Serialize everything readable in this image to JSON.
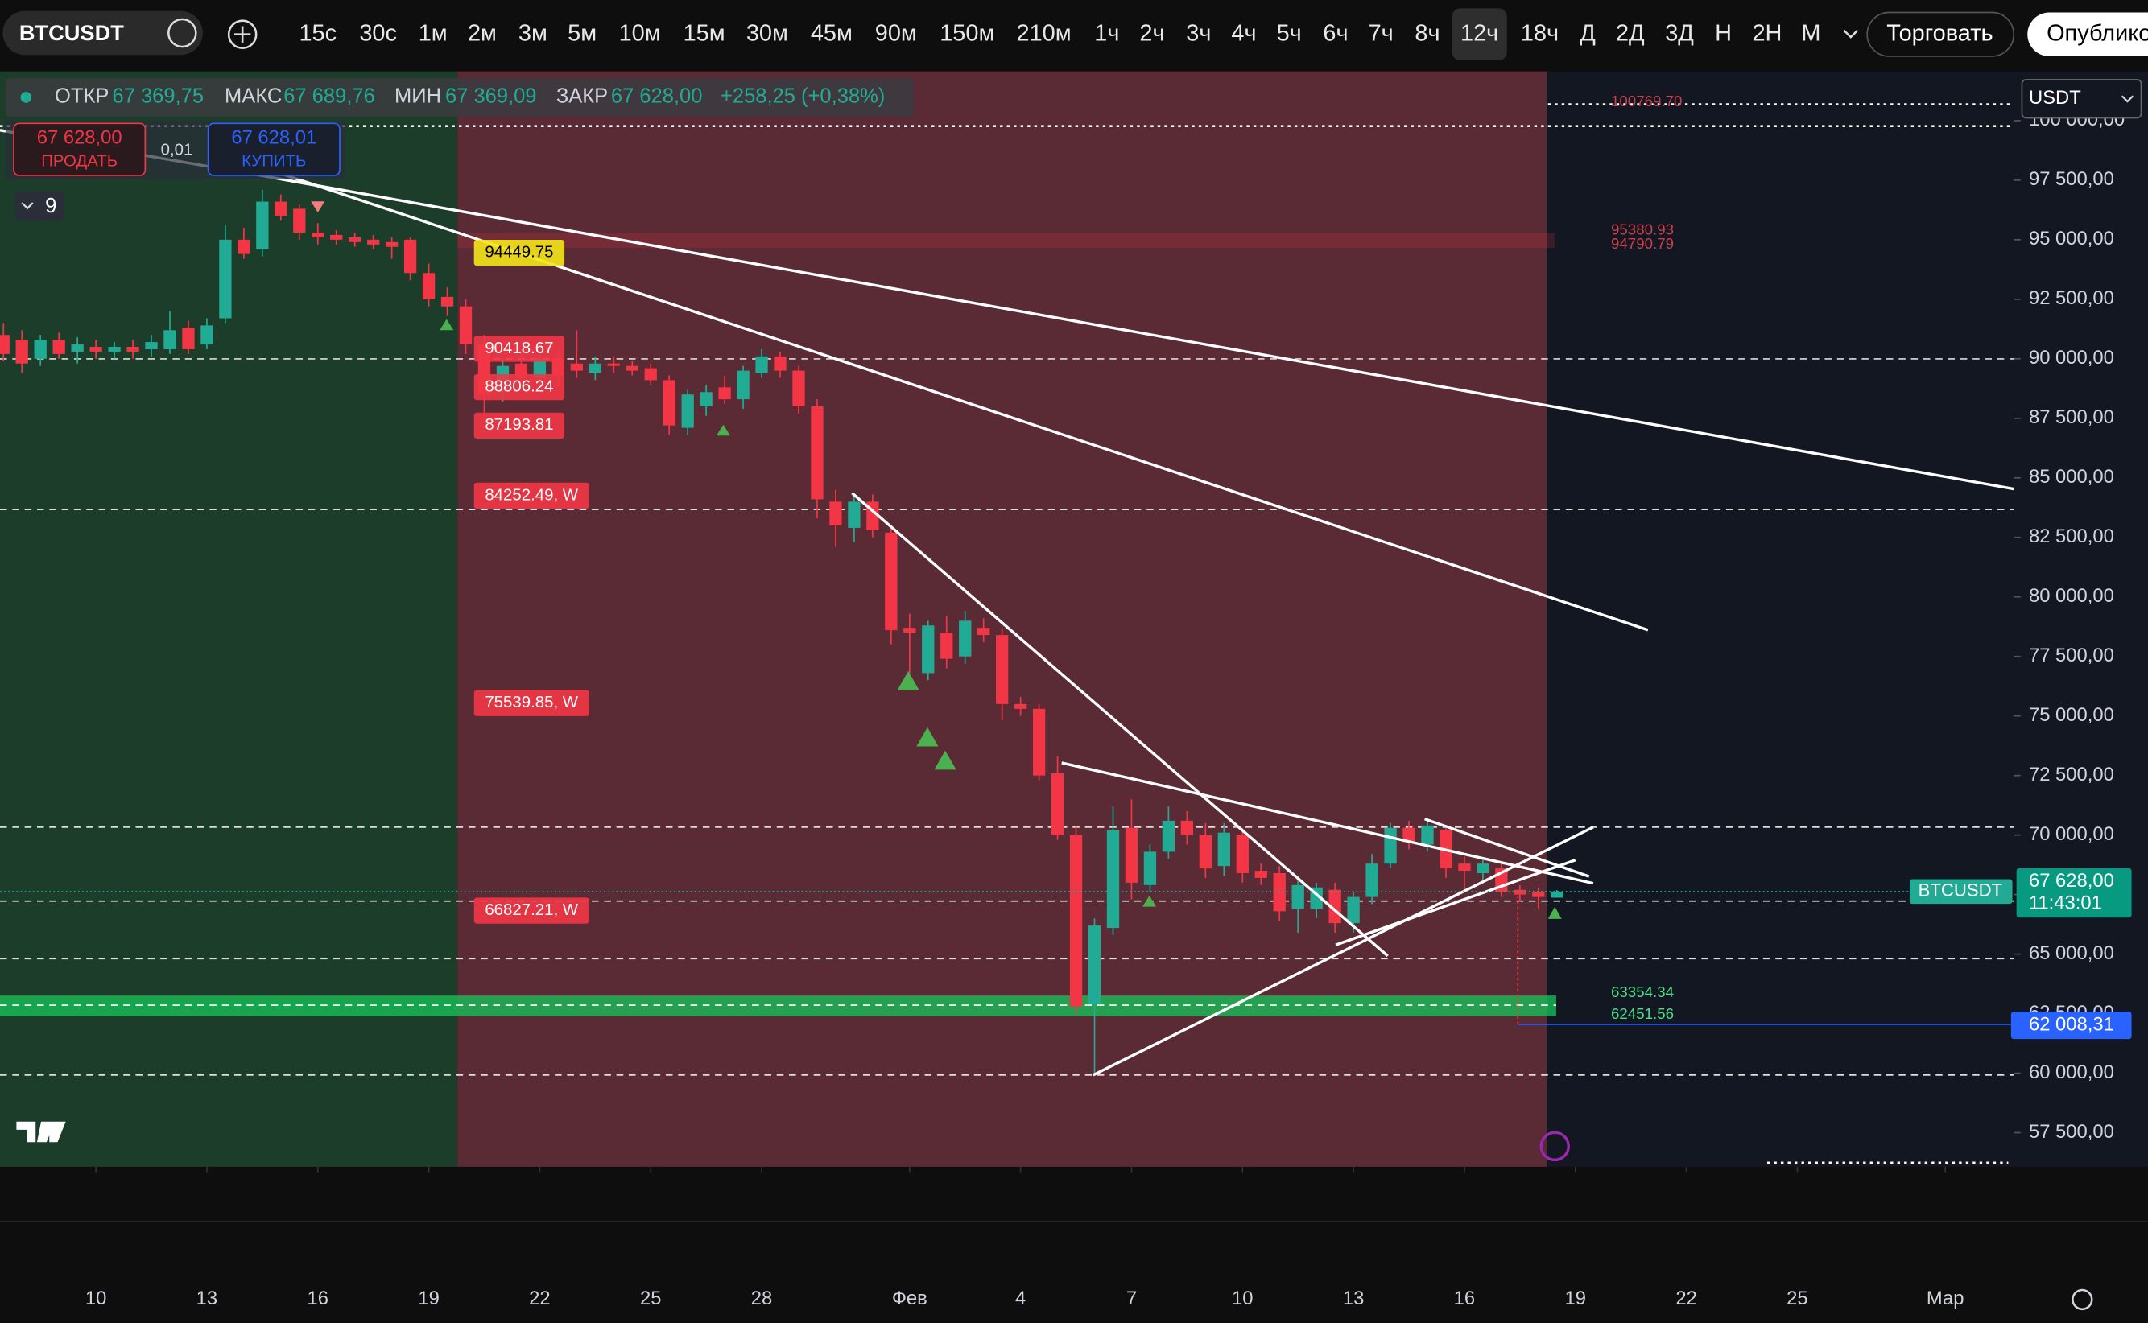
{
  "toolbar": {
    "symbol": "BTCUSDT",
    "timeframes": [
      "15с",
      "30с",
      "1м",
      "2м",
      "3м",
      "5м",
      "10м",
      "15м",
      "30м",
      "45м",
      "90м",
      "150м",
      "210м",
      "1ч",
      "2ч",
      "3ч",
      "4ч",
      "5ч",
      "6ч",
      "7ч",
      "8ч",
      "12ч",
      "18ч",
      "Д",
      "2Д",
      "3Д",
      "Н",
      "2Н",
      "М"
    ],
    "active_index": 21,
    "trade_button": "Торговать",
    "publish_button": "Опубликовать"
  },
  "legend": {
    "open_label": "ОТКР",
    "open": "67 369,75",
    "high_label": "МАКС",
    "high": "67 689,76",
    "low_label": "МИН",
    "low": "67 369,09",
    "close_label": "ЗАКР",
    "close": "67 628,00",
    "change": "+258,25 (+0,38%)"
  },
  "order_panel": {
    "sell_price": "67 628,00",
    "sell_label": "ПРОДАТЬ",
    "spread": "0,01",
    "buy_price": "67 628,01",
    "buy_label": "КУПИТЬ"
  },
  "indicators_count": "9",
  "currency": "USDT",
  "countdown": "11:43:01",
  "chart_data": {
    "type": "candlestick",
    "up_color": "#22ab94",
    "down_color": "#f23645",
    "categories": [
      null,
      null,
      null,
      null,
      null,
      null,
      null,
      null,
      null,
      null,
      null,
      null,
      null,
      null,
      null,
      null,
      null,
      null,
      null,
      null,
      null,
      null,
      null,
      null,
      null,
      null,
      null,
      null,
      null,
      null,
      null,
      null,
      null,
      null,
      null,
      null,
      null,
      null,
      null,
      null,
      null,
      null,
      null,
      null,
      null,
      null,
      null,
      null,
      null,
      null,
      null,
      null,
      null,
      null,
      null,
      null,
      null,
      null,
      null,
      null,
      null,
      null,
      null,
      null,
      null,
      null,
      null,
      null,
      null,
      null,
      null,
      null,
      null,
      null,
      null,
      null,
      null,
      null,
      null,
      null,
      null,
      null,
      null,
      null,
      null
    ],
    "candles": [
      [
        91000,
        91500,
        89900,
        90200
      ],
      [
        90800,
        91200,
        89400,
        89800
      ],
      [
        90000,
        91000,
        89700,
        90800
      ],
      [
        90800,
        91100,
        90000,
        90200
      ],
      [
        90300,
        90900,
        89800,
        90600
      ],
      [
        90500,
        90800,
        90000,
        90300
      ],
      [
        90300,
        90700,
        90000,
        90500
      ],
      [
        90500,
        90800,
        90000,
        90300
      ],
      [
        90400,
        91000,
        90100,
        90700
      ],
      [
        90400,
        92000,
        90200,
        91200
      ],
      [
        91300,
        91600,
        90200,
        90400
      ],
      [
        90600,
        91700,
        90400,
        91400
      ],
      [
        91700,
        95600,
        91500,
        95000
      ],
      [
        95000,
        95500,
        94200,
        94400
      ],
      [
        94600,
        97100,
        94300,
        96600
      ],
      [
        96600,
        96900,
        95800,
        96000
      ],
      [
        96300,
        96500,
        95000,
        95300
      ],
      [
        95300,
        95700,
        94800,
        95100
      ],
      [
        95200,
        95400,
        94800,
        95000
      ],
      [
        95100,
        95300,
        94700,
        94900
      ],
      [
        95000,
        95200,
        94600,
        94800
      ],
      [
        94900,
        95100,
        94200,
        94700
      ],
      [
        95000,
        95100,
        93300,
        93600
      ],
      [
        93600,
        94000,
        92200,
        92500
      ],
      [
        92600,
        93000,
        91800,
        92200
      ],
      [
        92200,
        92500,
        90200,
        90600
      ],
      [
        90600,
        91000,
        87500,
        88500
      ],
      [
        88600,
        90000,
        88200,
        89700
      ],
      [
        89800,
        90400,
        88700,
        89200
      ],
      [
        89200,
        90500,
        88800,
        90000
      ],
      [
        90000,
        90300,
        88800,
        89300
      ],
      [
        89800,
        91200,
        89200,
        89500
      ],
      [
        89400,
        90100,
        89100,
        89800
      ],
      [
        89800,
        90100,
        89400,
        89700
      ],
      [
        89700,
        89900,
        89300,
        89500
      ],
      [
        89600,
        89800,
        88900,
        89100
      ],
      [
        89100,
        89300,
        86800,
        87200
      ],
      [
        87100,
        88700,
        86800,
        88500
      ],
      [
        88000,
        88900,
        87600,
        88600
      ],
      [
        88800,
        89300,
        88100,
        88300
      ],
      [
        88300,
        89700,
        87900,
        89500
      ],
      [
        89400,
        90400,
        89200,
        90100
      ],
      [
        90100,
        90300,
        89200,
        89500
      ],
      [
        89500,
        89700,
        87700,
        88000
      ],
      [
        88000,
        88300,
        83300,
        84100
      ],
      [
        84000,
        84500,
        82100,
        83000
      ],
      [
        82900,
        84300,
        82300,
        84000
      ],
      [
        84000,
        84300,
        82500,
        82800
      ],
      [
        82700,
        83000,
        78000,
        78600
      ],
      [
        78700,
        79300,
        76800,
        78500
      ],
      [
        76800,
        79000,
        76500,
        78800
      ],
      [
        78500,
        79200,
        77000,
        77400
      ],
      [
        77500,
        79400,
        77200,
        79000
      ],
      [
        78700,
        79100,
        78100,
        78400
      ],
      [
        78400,
        78700,
        74800,
        75500
      ],
      [
        75500,
        75800,
        75000,
        75300
      ],
      [
        75300,
        75500,
        72300,
        72500
      ],
      [
        72600,
        73300,
        69800,
        70000
      ],
      [
        70000,
        70400,
        62500,
        62800
      ],
      [
        62900,
        66500,
        60000,
        66200
      ],
      [
        66100,
        71200,
        65800,
        70200
      ],
      [
        70300,
        71500,
        67300,
        68000
      ],
      [
        67900,
        69600,
        67600,
        69300
      ],
      [
        69300,
        71200,
        69000,
        70600
      ],
      [
        70600,
        71000,
        69600,
        70000
      ],
      [
        70000,
        70500,
        68200,
        68600
      ],
      [
        68700,
        70500,
        68300,
        70100
      ],
      [
        70000,
        70300,
        68000,
        68400
      ],
      [
        68500,
        68800,
        67900,
        68200
      ],
      [
        68400,
        68700,
        66400,
        66800
      ],
      [
        66900,
        68300,
        65900,
        67900
      ],
      [
        66900,
        68000,
        66500,
        67800
      ],
      [
        67700,
        68000,
        65900,
        66300
      ],
      [
        66300,
        67600,
        65900,
        67400
      ],
      [
        67400,
        69200,
        67100,
        68800
      ],
      [
        68800,
        70500,
        68600,
        70300
      ],
      [
        70300,
        70600,
        69400,
        69700
      ],
      [
        69600,
        70700,
        69300,
        70400
      ],
      [
        70200,
        70400,
        68200,
        68600
      ],
      [
        68800,
        69100,
        67600,
        68500
      ],
      [
        68400,
        69000,
        68100,
        68800
      ],
      [
        68600,
        68900,
        67400,
        67600
      ],
      [
        67700,
        67900,
        67200,
        67500
      ],
      [
        67600,
        67800,
        66900,
        67400
      ],
      [
        67369.75,
        67689.76,
        67369.09,
        67628
      ]
    ],
    "ylim": [
      56070,
      102070
    ],
    "yticks": [
      {
        "value": 100000,
        "label": "100 000,00"
      },
      {
        "value": 97500,
        "label": "97 500,00"
      },
      {
        "value": 95000,
        "label": "95 000,00"
      },
      {
        "value": 92500,
        "label": "92 500,00"
      },
      {
        "value": 90000,
        "label": "90 000,00"
      },
      {
        "value": 87500,
        "label": "87 500,00"
      },
      {
        "value": 85000,
        "label": "85 000,00"
      },
      {
        "value": 82500,
        "label": "82 500,00"
      },
      {
        "value": 80000,
        "label": "80 000,00"
      },
      {
        "value": 77500,
        "label": "77 500,00"
      },
      {
        "value": 75000,
        "label": "75 000,00"
      },
      {
        "value": 72500,
        "label": "72 500,00"
      },
      {
        "value": 70000,
        "label": "70 000,00"
      },
      {
        "value": 67500,
        "label": "67 500,00"
      },
      {
        "value": 65000,
        "label": "65 000,00"
      },
      {
        "value": 62500,
        "label": "62 500,00"
      },
      {
        "value": 60000,
        "label": "60 000,00"
      },
      {
        "value": 57500,
        "label": "57 500,00"
      }
    ],
    "xticks": [
      {
        "value": 5,
        "label": "10"
      },
      {
        "value": 11,
        "label": "13"
      },
      {
        "value": 17,
        "label": "16"
      },
      {
        "value": 23,
        "label": "19"
      },
      {
        "value": 29,
        "label": "22"
      },
      {
        "value": 35,
        "label": "25"
      },
      {
        "value": 41,
        "label": "28"
      },
      {
        "value": 49,
        "label": "Фев"
      },
      {
        "value": 55,
        "label": "4"
      },
      {
        "value": 61,
        "label": "7"
      },
      {
        "value": 67,
        "label": "10"
      },
      {
        "value": 73,
        "label": "13"
      },
      {
        "value": 79,
        "label": "16"
      },
      {
        "value": 85,
        "label": "19"
      },
      {
        "value": 91,
        "label": "22"
      },
      {
        "value": 97,
        "label": "25"
      },
      {
        "value": 105,
        "label": "Мар"
      }
    ],
    "annotations": [
      {
        "value": 94449.75,
        "label": "94449.75"
      },
      {
        "value": 90418.67,
        "label": "90418.67"
      },
      {
        "value": 88806.24,
        "label": "88806.24"
      },
      {
        "value": 87193.81,
        "label": "87193.81"
      },
      {
        "value": 84252.49,
        "label": "84252.49, W"
      },
      {
        "value": 75539.85,
        "label": "75539.85, W"
      },
      {
        "value": 66827.21,
        "label": "66827.21, W"
      }
    ],
    "zone_labels": [
      {
        "value": 100769.7,
        "label": "100769.70"
      },
      {
        "value": 95380.93,
        "label": "95380.93"
      },
      {
        "value": 94790.79,
        "label": "94790.79"
      },
      {
        "value": 63354.34,
        "label": "63354.34"
      },
      {
        "value": 62451.56,
        "label": "62451.56"
      }
    ],
    "last_price": {
      "value": 67628,
      "label": "67 628,00"
    },
    "alert_price": {
      "value": 62008.31,
      "label": "62 008,31"
    }
  }
}
